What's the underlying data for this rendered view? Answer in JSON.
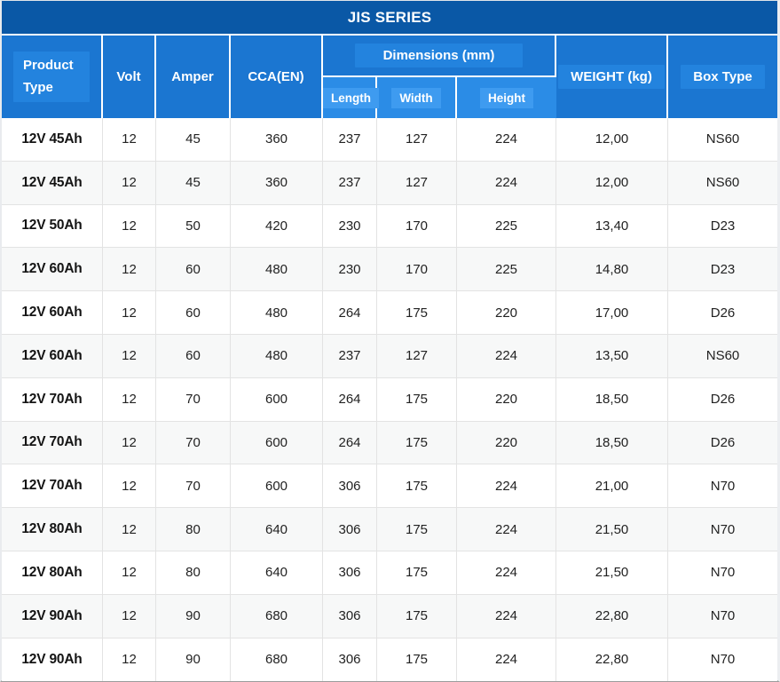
{
  "table": {
    "title": "JIS SERIES",
    "headers": {
      "product_type": "Product Type",
      "volt": "Volt",
      "amper": "Amper",
      "cca": "CCA(EN)",
      "dimensions": "Dimensions (mm)",
      "length": "Length",
      "width": "Width",
      "height": "Height",
      "weight": "WEIGHT (kg)",
      "box_type": "Box Type"
    },
    "rows": [
      [
        "12V 45Ah",
        "12",
        "45",
        "360",
        "237",
        "127",
        "224",
        "12,00",
        "NS60"
      ],
      [
        "12V 45Ah",
        "12",
        "45",
        "360",
        "237",
        "127",
        "224",
        "12,00",
        "NS60"
      ],
      [
        "12V 50Ah",
        "12",
        "50",
        "420",
        "230",
        "170",
        "225",
        "13,40",
        "D23"
      ],
      [
        "12V 60Ah",
        "12",
        "60",
        "480",
        "230",
        "170",
        "225",
        "14,80",
        "D23"
      ],
      [
        "12V 60Ah",
        "12",
        "60",
        "480",
        "264",
        "175",
        "220",
        "17,00",
        "D26"
      ],
      [
        "12V 60Ah",
        "12",
        "60",
        "480",
        "237",
        "127",
        "224",
        "13,50",
        "NS60"
      ],
      [
        "12V 70Ah",
        "12",
        "70",
        "600",
        "264",
        "175",
        "220",
        "18,50",
        "D26"
      ],
      [
        "12V 70Ah",
        "12",
        "70",
        "600",
        "264",
        "175",
        "220",
        "18,50",
        "D26"
      ],
      [
        "12V 70Ah",
        "12",
        "70",
        "600",
        "306",
        "175",
        "224",
        "21,00",
        "N70"
      ],
      [
        "12V 80Ah",
        "12",
        "80",
        "640",
        "306",
        "175",
        "224",
        "21,50",
        "N70"
      ],
      [
        "12V 80Ah",
        "12",
        "80",
        "640",
        "306",
        "175",
        "224",
        "21,50",
        "N70"
      ],
      [
        "12V 90Ah",
        "12",
        "90",
        "680",
        "306",
        "175",
        "224",
        "22,80",
        "N70"
      ],
      [
        "12V 90Ah",
        "12",
        "90",
        "680",
        "306",
        "175",
        "224",
        "22,80",
        "N70"
      ]
    ]
  },
  "chart_data": {
    "type": "table",
    "title": "JIS SERIES",
    "columns": [
      "Product Type",
      "Volt",
      "Amper",
      "CCA(EN)",
      "Length",
      "Width",
      "Height",
      "WEIGHT (kg)",
      "Box Type"
    ],
    "column_groups": [
      {
        "label": "Dimensions (mm)",
        "spans": [
          "Length",
          "Width",
          "Height"
        ]
      }
    ],
    "rows": [
      [
        "12V 45Ah",
        12,
        45,
        360,
        237,
        127,
        224,
        "12,00",
        "NS60"
      ],
      [
        "12V 45Ah",
        12,
        45,
        360,
        237,
        127,
        224,
        "12,00",
        "NS60"
      ],
      [
        "12V 50Ah",
        12,
        50,
        420,
        230,
        170,
        225,
        "13,40",
        "D23"
      ],
      [
        "12V 60Ah",
        12,
        60,
        480,
        230,
        170,
        225,
        "14,80",
        "D23"
      ],
      [
        "12V 60Ah",
        12,
        60,
        480,
        264,
        175,
        220,
        "17,00",
        "D26"
      ],
      [
        "12V 60Ah",
        12,
        60,
        480,
        237,
        127,
        224,
        "13,50",
        "NS60"
      ],
      [
        "12V 70Ah",
        12,
        70,
        600,
        264,
        175,
        220,
        "18,50",
        "D26"
      ],
      [
        "12V 70Ah",
        12,
        70,
        600,
        264,
        175,
        220,
        "18,50",
        "D26"
      ],
      [
        "12V 70Ah",
        12,
        70,
        600,
        306,
        175,
        224,
        "21,00",
        "N70"
      ],
      [
        "12V 80Ah",
        12,
        80,
        640,
        306,
        175,
        224,
        "21,50",
        "N70"
      ],
      [
        "12V 80Ah",
        12,
        80,
        640,
        306,
        175,
        224,
        "21,50",
        "N70"
      ],
      [
        "12V 90Ah",
        12,
        90,
        680,
        306,
        175,
        224,
        "22,80",
        "N70"
      ],
      [
        "12V 90Ah",
        12,
        90,
        680,
        306,
        175,
        224,
        "22,80",
        "N70"
      ]
    ]
  },
  "colors": {
    "title_bar_bg": "#0a58a6",
    "header_bg": "#1b76d1",
    "header_box_bg": "#2383de",
    "subheader_bg": "#2b8ce6",
    "subheader_box_bg": "#3e9bf0",
    "header_text": "#ffffff",
    "row_alt_bg": "#f7f8f8",
    "body_text": "#222222",
    "grid_line": "#e3e3e3"
  }
}
